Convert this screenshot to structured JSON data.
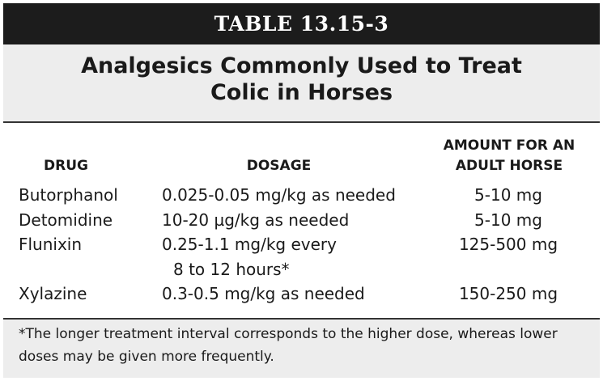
{
  "table_number": "TABLE 13.15-3",
  "title": {
    "line1": "Analgesics Commonly Used to Treat",
    "line2": "Colic in Horses"
  },
  "columns": {
    "drug": "DRUG",
    "dosage": "DOSAGE",
    "amount_line1": "AMOUNT FOR AN",
    "amount_line2": "ADULT HORSE"
  },
  "rows": [
    {
      "drug": "Butorphanol",
      "dosage": "0.025-0.05 mg/kg as needed",
      "dosage_cont": "",
      "amount": "5-10 mg"
    },
    {
      "drug": "Detomidine",
      "dosage": "10-20 µg/kg as needed",
      "dosage_cont": "",
      "amount": "5-10 mg"
    },
    {
      "drug": "Flunixin",
      "dosage": "0.25-1.1 mg/kg every",
      "dosage_cont": "8 to 12 hours*",
      "amount": "125-500 mg"
    },
    {
      "drug": "Xylazine",
      "dosage": "0.3-0.5 mg/kg as needed",
      "dosage_cont": "",
      "amount": "150-250 mg"
    }
  ],
  "footnote": "*The longer treatment interval corresponds to the higher dose, whereas lower doses may be given more frequently."
}
